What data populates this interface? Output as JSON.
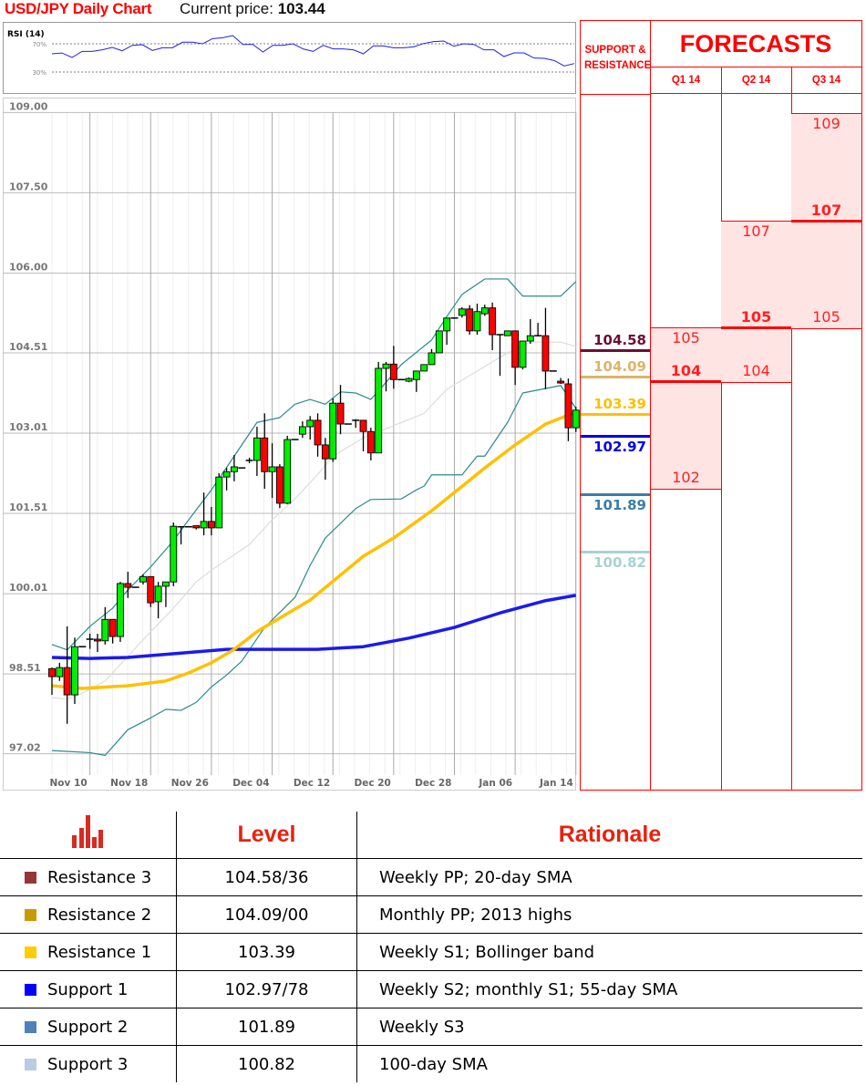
{
  "header": {
    "title": "USD/JPY Daily Chart",
    "price_label": "Current price:",
    "price_value": "103.44"
  },
  "chart_data": [
    {
      "type": "candlestick",
      "title": "USD/JPY Daily Chart",
      "y_ticks": [
        "109.00",
        "107.50",
        "106.00",
        "104.51",
        "103.01",
        "101.51",
        "100.01",
        "98.51",
        "97.02"
      ],
      "y_tick_values": [
        109.0,
        107.5,
        106.0,
        104.51,
        103.01,
        101.51,
        100.01,
        98.51,
        97.02
      ],
      "ylim": [
        96.9,
        109.1
      ],
      "x_ticks": [
        "Nov 10",
        "Nov 18",
        "Nov 26",
        "Dec 04",
        "Dec 12",
        "Dec 20",
        "Dec 28",
        "Jan 06",
        "Jan 14"
      ],
      "grid": true,
      "colors": {
        "up": "#00ee00",
        "down": "#ff0000",
        "bollinger": "#2a8a8a",
        "sma20": "#dddddd",
        "sma55": "#ffc000",
        "sma100": "#1a1aee"
      },
      "ohlc": [
        [
          98.61,
          98.63,
          98.12,
          98.46
        ],
        [
          98.46,
          98.72,
          98.38,
          98.63
        ],
        [
          98.63,
          99.4,
          97.58,
          98.12
        ],
        [
          98.12,
          99.19,
          97.95,
          99.02
        ],
        [
          99.02,
          99.02,
          99.02,
          99.02
        ],
        [
          99.16,
          99.26,
          98.98,
          99.16
        ],
        [
          99.16,
          99.26,
          98.92,
          99.13
        ],
        [
          99.13,
          99.76,
          99.06,
          99.53
        ],
        [
          99.53,
          99.53,
          99.08,
          99.21
        ],
        [
          99.21,
          100.23,
          99.11,
          100.2
        ],
        [
          100.2,
          100.42,
          99.93,
          100.13
        ],
        [
          100.13,
          100.13,
          100.13,
          100.13
        ],
        [
          100.23,
          100.37,
          100.18,
          100.33
        ],
        [
          100.33,
          100.33,
          99.76,
          99.84
        ],
        [
          99.86,
          100.23,
          99.55,
          100.15
        ],
        [
          100.15,
          100.23,
          99.76,
          100.23
        ],
        [
          100.23,
          101.34,
          100.15,
          101.27
        ],
        [
          101.26,
          101.27,
          100.93,
          101.26
        ],
        [
          101.26,
          101.26,
          101.26,
          101.26
        ],
        [
          101.28,
          101.28,
          101.21,
          101.24
        ],
        [
          101.24,
          101.9,
          101.1,
          101.36
        ],
        [
          101.36,
          101.63,
          101.1,
          101.24
        ],
        [
          101.24,
          102.26,
          101.24,
          102.19
        ],
        [
          102.19,
          102.36,
          101.94,
          102.29
        ],
        [
          102.29,
          102.6,
          102.11,
          102.38
        ],
        [
          102.36,
          102.36,
          102.36,
          102.36
        ],
        [
          102.5,
          102.55,
          102.45,
          102.5
        ],
        [
          102.5,
          103.13,
          102.21,
          102.92
        ],
        [
          102.92,
          103.38,
          101.97,
          102.29
        ],
        [
          102.29,
          102.82,
          101.8,
          102.38
        ],
        [
          102.38,
          102.43,
          101.61,
          101.7
        ],
        [
          101.7,
          102.96,
          101.68,
          102.89
        ],
        [
          102.89,
          102.89,
          102.89,
          102.89
        ],
        [
          102.99,
          103.23,
          102.92,
          103.13
        ],
        [
          103.13,
          103.33,
          102.89,
          103.25
        ],
        [
          103.25,
          103.38,
          102.57,
          102.79
        ],
        [
          102.79,
          102.92,
          102.14,
          102.53
        ],
        [
          102.53,
          103.66,
          102.47,
          103.57
        ],
        [
          103.57,
          103.91,
          102.99,
          103.18
        ],
        [
          103.18,
          103.18,
          103.18,
          103.18
        ],
        [
          103.25,
          103.27,
          103.11,
          103.25
        ],
        [
          103.25,
          103.25,
          102.67,
          103.04
        ],
        [
          103.04,
          103.11,
          102.5,
          102.64
        ],
        [
          102.64,
          104.34,
          102.64,
          104.22
        ],
        [
          104.22,
          104.34,
          103.79,
          104.3
        ],
        [
          104.3,
          104.64,
          103.84,
          104.01
        ],
        [
          104.01,
          104.01,
          104.01,
          104.01
        ],
        [
          103.98,
          104.05,
          103.96,
          104.03
        ],
        [
          104.01,
          104.17,
          103.78,
          104.17
        ],
        [
          104.17,
          104.29,
          104.17,
          104.29
        ],
        [
          104.29,
          104.58,
          104.29,
          104.51
        ],
        [
          104.51,
          104.92,
          104.51,
          104.92
        ],
        [
          104.92,
          105.16,
          104.66,
          105.16
        ],
        [
          105.16,
          105.16,
          105.16,
          105.16
        ],
        [
          105.21,
          105.36,
          105.17,
          105.33
        ],
        [
          105.33,
          105.4,
          104.85,
          104.92
        ],
        [
          104.92,
          105.43,
          104.85,
          105.28
        ],
        [
          105.24,
          105.41,
          105.2,
          105.35
        ],
        [
          105.35,
          105.45,
          104.56,
          104.85
        ],
        [
          104.85,
          104.85,
          104.08,
          104.85
        ],
        [
          104.83,
          104.92,
          104.83,
          104.92
        ],
        [
          104.92,
          104.92,
          103.91,
          104.24
        ],
        [
          104.24,
          104.73,
          104.2,
          104.73
        ],
        [
          104.73,
          105.14,
          104.68,
          104.83
        ],
        [
          104.83,
          105.07,
          104.83,
          104.83
        ],
        [
          104.83,
          105.35,
          103.83,
          104.17
        ],
        [
          104.17,
          104.17,
          104.17,
          104.17
        ],
        [
          103.98,
          104.04,
          103.93,
          103.95
        ],
        [
          103.93,
          104.03,
          102.86,
          103.11
        ],
        [
          103.11,
          103.5,
          103.03,
          103.44
        ]
      ],
      "bollinger_upper": [
        [
          0,
          99.06
        ],
        [
          2,
          98.96
        ],
        [
          5,
          99.4
        ],
        [
          8,
          99.74
        ],
        [
          10,
          100.08
        ],
        [
          13,
          100.51
        ],
        [
          16,
          101.0
        ],
        [
          18,
          101.39
        ],
        [
          21,
          101.95
        ],
        [
          24,
          102.58
        ],
        [
          27,
          103.21
        ],
        [
          30,
          103.3
        ],
        [
          32,
          103.55
        ],
        [
          34,
          103.64
        ],
        [
          36,
          103.55
        ],
        [
          38,
          103.78
        ],
        [
          40,
          103.76
        ],
        [
          42,
          103.64
        ],
        [
          44,
          103.96
        ],
        [
          46,
          104.29
        ],
        [
          50,
          104.75
        ],
        [
          52,
          105.19
        ],
        [
          54,
          105.6
        ],
        [
          57,
          105.89
        ],
        [
          60,
          105.89
        ],
        [
          62,
          105.57
        ],
        [
          67,
          105.57
        ],
        [
          69,
          105.84
        ]
      ],
      "bollinger_lower": [
        [
          0,
          97.08
        ],
        [
          5,
          97.04
        ],
        [
          7,
          96.99
        ],
        [
          10,
          97.47
        ],
        [
          13,
          97.69
        ],
        [
          15,
          97.85
        ],
        [
          17,
          97.83
        ],
        [
          19,
          97.98
        ],
        [
          21,
          98.27
        ],
        [
          23,
          98.49
        ],
        [
          25,
          98.75
        ],
        [
          28,
          99.38
        ],
        [
          32,
          99.94
        ],
        [
          34,
          100.54
        ],
        [
          36,
          101.05
        ],
        [
          40,
          101.6
        ],
        [
          42,
          101.77
        ],
        [
          46,
          101.78
        ],
        [
          48,
          101.95
        ],
        [
          49,
          102.02
        ],
        [
          50,
          102.23
        ],
        [
          54,
          102.23
        ],
        [
          56,
          102.58
        ],
        [
          57,
          102.58
        ],
        [
          60,
          103.21
        ],
        [
          62,
          103.76
        ],
        [
          67,
          103.9
        ],
        [
          69,
          103.47
        ]
      ],
      "sma20": [
        [
          0,
          98.07
        ],
        [
          2,
          98.04
        ],
        [
          4,
          98.15
        ],
        [
          7,
          98.38
        ],
        [
          10,
          98.84
        ],
        [
          13,
          99.3
        ],
        [
          16,
          99.74
        ],
        [
          19,
          100.23
        ],
        [
          21,
          100.45
        ],
        [
          26,
          100.93
        ],
        [
          29,
          101.39
        ],
        [
          32,
          101.78
        ],
        [
          35,
          102.24
        ],
        [
          37,
          102.58
        ],
        [
          41,
          102.92
        ],
        [
          45,
          103.15
        ],
        [
          49,
          103.38
        ],
        [
          52,
          103.83
        ],
        [
          56,
          104.17
        ],
        [
          60,
          104.51
        ],
        [
          63,
          104.71
        ],
        [
          67,
          104.71
        ],
        [
          69,
          104.63
        ]
      ],
      "sma55": [
        [
          0,
          98.29
        ],
        [
          4,
          98.24
        ],
        [
          10,
          98.29
        ],
        [
          15,
          98.38
        ],
        [
          18,
          98.53
        ],
        [
          21,
          98.72
        ],
        [
          24,
          98.97
        ],
        [
          27,
          99.3
        ],
        [
          29,
          99.47
        ],
        [
          34,
          99.89
        ],
        [
          41,
          100.71
        ],
        [
          45,
          101.05
        ],
        [
          50,
          101.56
        ],
        [
          53,
          101.9
        ],
        [
          57,
          102.36
        ],
        [
          61,
          102.79
        ],
        [
          65,
          103.18
        ],
        [
          69,
          103.4
        ]
      ],
      "sma100": [
        [
          0,
          98.82
        ],
        [
          5,
          98.8
        ],
        [
          10,
          98.82
        ],
        [
          17,
          98.9
        ],
        [
          23,
          98.97
        ],
        [
          29,
          98.97
        ],
        [
          35,
          98.97
        ],
        [
          41,
          99.02
        ],
        [
          47,
          99.18
        ],
        [
          53,
          99.38
        ],
        [
          59,
          99.65
        ],
        [
          65,
          99.88
        ],
        [
          69,
          99.98
        ]
      ]
    },
    {
      "type": "line",
      "title": "RSI (14)",
      "y_ticks": [
        "70%",
        "30%"
      ],
      "y_tick_values": [
        70,
        30
      ],
      "ylim": [
        0,
        100
      ],
      "color": "#2020ee",
      "values": [
        55.8,
        57,
        50.6,
        59.2,
        59.2,
        61.4,
        64.8,
        60.1,
        67.8,
        68.7,
        60.5,
        64.4,
        64.4,
        72.2,
        72.2,
        70,
        77.3,
        78.6,
        81.6,
        69.1,
        69.1,
        58.4,
        67.8,
        67.8,
        70,
        62.7,
        59.2,
        67.8,
        62.7,
        62.7,
        61.4,
        55.8,
        67,
        67,
        64.4,
        64.4,
        65.7,
        70.4,
        73,
        73.9,
        66.6,
        70,
        69.1,
        61.4,
        61.4,
        51.9,
        57.1,
        57.1,
        49.8,
        49.4,
        46.3,
        38.6,
        42
      ]
    }
  ],
  "panel": {
    "sr_header": "SUPPORT & RESISTANCE",
    "forecast_header": "FORECASTS",
    "levels": [
      {
        "value": 104.58,
        "label": "104.58",
        "color": "#6b0f33",
        "side": "above"
      },
      {
        "value": 104.09,
        "label": "104.09",
        "color": "#dcb46a",
        "side": "above"
      },
      {
        "value": 103.39,
        "label": "103.39",
        "color": "#ffc000",
        "side": "above"
      },
      {
        "value": 102.97,
        "label": "102.97",
        "color": "#0000ee",
        "side": "below"
      },
      {
        "value": 101.89,
        "label": "101.89",
        "color": "#3a7ea8",
        "side": "below"
      },
      {
        "value": 100.82,
        "label": "100.82",
        "color": "#a8d2d2",
        "side": "below"
      }
    ],
    "forecasts": [
      {
        "quarter": "Q1 14",
        "high": 105,
        "mid": 104,
        "low": 102,
        "high_label": "105",
        "mid_label": "104",
        "low_label": "102"
      },
      {
        "quarter": "Q2 14",
        "high": 107,
        "mid": 105,
        "low": 104,
        "high_label": "107",
        "mid_label": "105",
        "low_label": "104"
      },
      {
        "quarter": "Q3 14",
        "high": 109,
        "mid": 107,
        "low": 105,
        "high_label": "109",
        "mid_label": "107",
        "low_label": "105"
      }
    ]
  },
  "table": {
    "headers": {
      "icon": "bar-chart-icon",
      "level": "Level",
      "rationale": "Rationale"
    },
    "rows": [
      {
        "name": "Resistance 3",
        "level": "104.58/36",
        "rationale": "Weekly PP; 20-day SMA",
        "color": "#943634"
      },
      {
        "name": "Resistance 2",
        "level": "104.09/00",
        "rationale": "Monthly PP; 2013 highs",
        "color": "#c99a00"
      },
      {
        "name": "Resistance 1",
        "level": "103.39",
        "rationale": "Weekly S1; Bollinger band",
        "color": "#ffcc00"
      },
      {
        "name": "Support 1",
        "level": "102.97/78",
        "rationale": "Weekly S2; monthly S1; 55-day SMA",
        "color": "#0000ff"
      },
      {
        "name": "Support 2",
        "level": "101.89",
        "rationale": "Weekly S3",
        "color": "#4f81bd"
      },
      {
        "name": "Support 3",
        "level": "100.82",
        "rationale": "100-day SMA",
        "color": "#b8cce4"
      }
    ]
  }
}
